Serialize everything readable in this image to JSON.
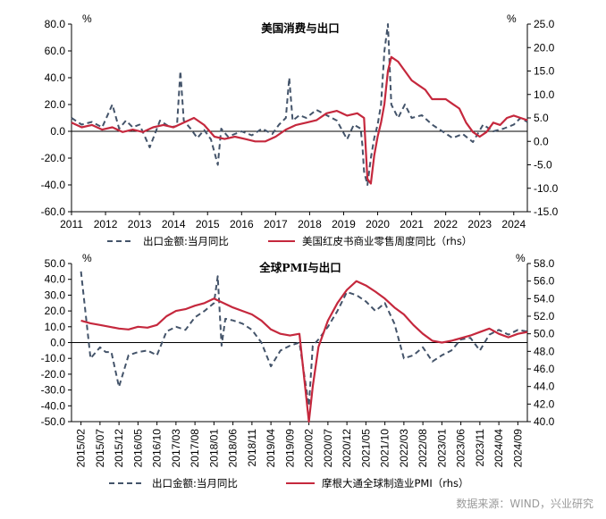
{
  "source": "数据来源：WIND，兴业研究",
  "colors": {
    "export": "#44546a",
    "red": "#c5283d"
  },
  "chart_data": [
    {
      "type": "line",
      "title": "美国消费与出口",
      "y_unit_left": "%",
      "y_unit_right": "%",
      "ylim_left": [
        -60,
        80
      ],
      "ylim_right": [
        -15,
        25
      ],
      "yticks_left": [
        "80.0",
        "60.0",
        "40.0",
        "20.0",
        "0.0",
        "-20.0",
        "-40.0",
        "-60.0"
      ],
      "yticks_right": [
        "25.0",
        "20.0",
        "15.0",
        "10.0",
        "5.0",
        "0.0",
        "-5.0",
        "-10.0",
        "-15.0"
      ],
      "xticks": [
        "2011",
        "2012",
        "2013",
        "2014",
        "2015",
        "2016",
        "2017",
        "2018",
        "2019",
        "2020",
        "2021",
        "2022",
        "2023",
        "2024"
      ],
      "xlim": [
        2011.0,
        2024.4
      ],
      "legend_placement": "bottom",
      "series": [
        {
          "name": "出口金额:当月同比",
          "axis": "left",
          "style": "dashed",
          "x": [
            2011.0,
            2011.3,
            2011.6,
            2011.9,
            2012.2,
            2012.4,
            2012.6,
            2012.8,
            2013.0,
            2013.3,
            2013.6,
            2013.9,
            2014.1,
            2014.2,
            2014.3,
            2014.5,
            2014.7,
            2014.9,
            2015.1,
            2015.3,
            2015.4,
            2015.6,
            2015.8,
            2016.0,
            2016.3,
            2016.6,
            2016.9,
            2017.1,
            2017.3,
            2017.4,
            2017.5,
            2017.7,
            2017.9,
            2018.2,
            2018.5,
            2018.8,
            2019.1,
            2019.3,
            2019.5,
            2019.55,
            2019.6,
            2019.7,
            2019.8,
            2019.9,
            2020.0,
            2020.1,
            2020.2,
            2020.3,
            2020.35,
            2020.4,
            2020.5,
            2020.6,
            2020.8,
            2021.0,
            2021.3,
            2021.6,
            2021.9,
            2022.2,
            2022.5,
            2022.8,
            2023.1,
            2023.4,
            2023.7,
            2024.0,
            2024.2,
            2024.4
          ],
          "y": [
            10,
            5,
            7,
            3,
            20,
            2,
            8,
            3,
            5,
            -12,
            8,
            3,
            4,
            45,
            8,
            2,
            -5,
            1,
            -6,
            -25,
            2,
            -4,
            -2,
            0,
            -3,
            2,
            -2,
            5,
            10,
            40,
            8,
            12,
            10,
            16,
            12,
            8,
            -6,
            5,
            2,
            -10,
            -30,
            -40,
            -20,
            -5,
            5,
            20,
            60,
            80,
            50,
            20,
            15,
            10,
            20,
            10,
            12,
            5,
            0,
            -5,
            -2,
            -8,
            5,
            0,
            2,
            5,
            10,
            7
          ]
        },
        {
          "name": "美国红皮书商业零售周度同比（rhs）",
          "axis": "right",
          "style": "solid",
          "x": [
            2011.0,
            2011.3,
            2011.6,
            2011.9,
            2012.2,
            2012.5,
            2012.8,
            2013.1,
            2013.4,
            2013.7,
            2014.0,
            2014.3,
            2014.6,
            2014.9,
            2015.2,
            2015.5,
            2015.8,
            2016.1,
            2016.4,
            2016.7,
            2017.0,
            2017.3,
            2017.6,
            2017.9,
            2018.2,
            2018.5,
            2018.8,
            2019.1,
            2019.4,
            2019.6,
            2019.7,
            2019.8,
            2019.9,
            2020.0,
            2020.1,
            2020.2,
            2020.3,
            2020.4,
            2020.6,
            2020.8,
            2021.0,
            2021.2,
            2021.4,
            2021.6,
            2021.8,
            2022.0,
            2022.2,
            2022.4,
            2022.6,
            2022.8,
            2023.0,
            2023.2,
            2023.4,
            2023.6,
            2023.8,
            2024.0,
            2024.2,
            2024.4
          ],
          "y": [
            4,
            3,
            3.5,
            2.5,
            3,
            2,
            2.5,
            2,
            3,
            3.5,
            3,
            4,
            5,
            3.5,
            1,
            0.5,
            1,
            0.5,
            0,
            0,
            1,
            2.5,
            3.5,
            4,
            4.5,
            6,
            6.5,
            5.5,
            6,
            5,
            -8,
            -9,
            -3,
            1,
            4,
            8,
            15,
            18,
            17,
            15,
            13,
            12,
            11,
            9,
            9,
            9,
            8,
            7,
            4,
            2,
            1,
            2,
            4,
            3.5,
            5,
            5.5,
            5,
            4.5
          ]
        }
      ]
    },
    {
      "type": "line",
      "title": "全球PMI与出口",
      "y_unit_left": "%",
      "y_unit_right": "%",
      "ylim_left": [
        -50,
        50
      ],
      "ylim_right": [
        40,
        58
      ],
      "yticks_left": [
        "50.0",
        "40.0",
        "30.0",
        "20.0",
        "10.0",
        "0.0",
        "-10.0",
        "-20.0",
        "-30.0",
        "-40.0",
        "-50.0"
      ],
      "yticks_right": [
        "58.0",
        "56.0",
        "54.0",
        "52.0",
        "50.0",
        "48.0",
        "46.0",
        "44.0",
        "42.0",
        "40.0"
      ],
      "xticks": [
        "2015/02",
        "2015/07",
        "2015/12",
        "2016/05",
        "2016/10",
        "2017/03",
        "2017/08",
        "2018/01",
        "2018/06",
        "2018/11",
        "2019/04",
        "2019/09",
        "2020/02",
        "2020/07",
        "2020/12",
        "2021/05",
        "2021/10",
        "2022/03",
        "2022/08",
        "2023/01",
        "2023/06",
        "2023/11",
        "2024/04",
        "2024/09"
      ],
      "legend_placement": "bottom",
      "series": [
        {
          "name": "出口金额:当月同比",
          "axis": "left",
          "style": "dashed",
          "x": [
            0,
            0.5,
            1,
            1.3,
            1.6,
            2,
            2.5,
            3,
            3.5,
            4,
            4.5,
            5,
            5.5,
            6,
            6.5,
            7,
            7.2,
            7.4,
            7.6,
            8,
            8.5,
            9,
            9.5,
            10,
            10.5,
            11,
            11.5,
            12,
            12.2,
            12.5,
            13,
            13.5,
            14,
            14.5,
            15,
            15.5,
            16,
            16.5,
            17,
            17.5,
            18,
            18.5,
            19,
            19.5,
            20,
            20.5,
            21,
            21.5,
            22,
            22.5,
            23,
            23.5
          ],
          "y": [
            45,
            -10,
            -3,
            -6,
            -6,
            -28,
            -8,
            -6,
            -5,
            -8,
            7,
            10,
            8,
            16,
            20,
            25,
            42,
            -2,
            15,
            14,
            12,
            8,
            0,
            -15,
            -5,
            -2,
            0,
            -40,
            -2,
            2,
            10,
            20,
            32,
            30,
            26,
            20,
            25,
            12,
            -10,
            -8,
            -3,
            -12,
            -8,
            -5,
            2,
            3,
            -5,
            5,
            8,
            5,
            8,
            7
          ]
        },
        {
          "name": "摩根大通全球制造业PMI（rhs）",
          "axis": "right",
          "style": "solid",
          "x": [
            0,
            0.5,
            1,
            1.5,
            2,
            2.5,
            3,
            3.5,
            4,
            4.5,
            5,
            5.5,
            6,
            6.5,
            7,
            7.5,
            8,
            8.5,
            9,
            9.5,
            10,
            10.5,
            11,
            11.5,
            12,
            12.2,
            12.5,
            13,
            13.5,
            14,
            14.5,
            15,
            15.5,
            16,
            16.5,
            17,
            17.5,
            18,
            18.5,
            19,
            19.5,
            20,
            20.5,
            21,
            21.5,
            22,
            22.5,
            23,
            23.5
          ],
          "y": [
            51.5,
            51.2,
            51.0,
            50.8,
            50.6,
            50.5,
            50.8,
            50.7,
            51.0,
            52.0,
            52.6,
            52.8,
            53.2,
            53.5,
            54.0,
            53.5,
            53.0,
            52.6,
            52.2,
            51.5,
            50.5,
            50.0,
            49.8,
            50.0,
            40.0,
            44.0,
            48.5,
            51.5,
            53.5,
            55.0,
            56.0,
            55.5,
            54.8,
            54.0,
            53.0,
            52.2,
            51.0,
            50.0,
            49.2,
            49.0,
            49.2,
            49.5,
            49.8,
            50.2,
            50.6,
            50.0,
            49.6,
            50.0,
            50.2
          ]
        }
      ]
    }
  ]
}
